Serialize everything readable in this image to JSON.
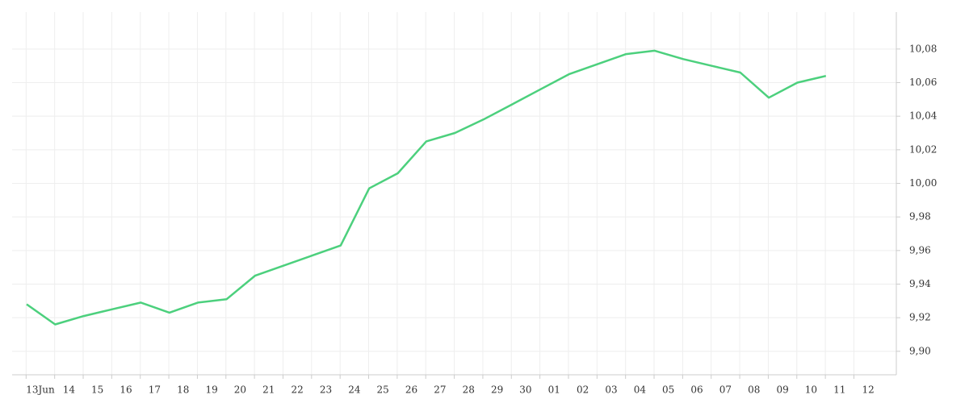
{
  "chart_data": {
    "type": "line",
    "categories": [
      "13Jun",
      "14",
      "15",
      "16",
      "17",
      "18",
      "19",
      "20",
      "21",
      "22",
      "23",
      "24",
      "25",
      "26",
      "27",
      "28",
      "29",
      "30",
      "01",
      "02",
      "03",
      "04",
      "05",
      "06",
      "07",
      "08",
      "09",
      "10",
      "11",
      "12"
    ],
    "series": [
      {
        "color": "#4cd07d",
        "values": [
          9.928,
          9.916,
          9.921,
          9.925,
          9.929,
          9.923,
          9.929,
          9.931,
          9.945,
          9.951,
          9.957,
          9.963,
          9.997,
          10.006,
          10.025,
          10.03,
          10.038,
          10.047,
          10.056,
          10.065,
          10.071,
          10.077,
          10.079,
          10.074,
          10.07,
          10.066,
          10.051,
          10.06,
          10.064,
          null
        ]
      }
    ],
    "ylim": [
      9.886,
      10.102
    ],
    "yticks": [
      {
        "value": 9.9,
        "label": "9,90"
      },
      {
        "value": 9.92,
        "label": "9,92"
      },
      {
        "value": 9.94,
        "label": "9,94"
      },
      {
        "value": 9.96,
        "label": "9,96"
      },
      {
        "value": 9.98,
        "label": "9,98"
      },
      {
        "value": 10.0,
        "label": "10,00"
      },
      {
        "value": 10.02,
        "label": "10,02"
      },
      {
        "value": 10.04,
        "label": "10,04"
      },
      {
        "value": 10.06,
        "label": "10,06"
      },
      {
        "value": 10.08,
        "label": "10,08"
      }
    ],
    "grid": true
  }
}
